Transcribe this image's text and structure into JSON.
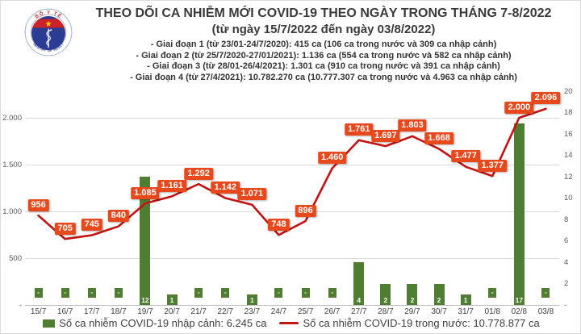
{
  "header": {
    "logo": {
      "top_text": "BỘ Y TẾ",
      "bottom_text": "MINISTRY OF HEALTH"
    },
    "title": "THEO DÕI CA NHIỄM MỚI COVID-19 THEO NGÀY TRONG THÁNG 7-8/2022",
    "subtitle": "(từ ngày 15/7/2022 đến ngày 03/8/2022)",
    "stages": [
      "- Giai đoạn 1 (từ 23/01-24/7/2020): 415 ca (106 ca trong nước và 309 ca nhập cảnh)",
      "- Giai đoạn 2 (từ 25/7/2020-27/01/2021): 1.136 ca (554 ca trong nước và 582 ca nhập cảnh)",
      "- Giai đoạn 3 (từ 28/01-26/4/2021): 1.301 ca (910 ca trong nước và 391 ca nhập cảnh)",
      "- Giai đoạn 4 (từ 27/4/2021): 10.782.270 ca (10.777.307 ca trong nước và 4.963 ca nhập cảnh)"
    ]
  },
  "chart_data": {
    "type": "bar",
    "subtype": "combo-bar-line",
    "categories": [
      "15/7",
      "16/7",
      "17/7",
      "18/7",
      "19/7",
      "20/7",
      "21/7",
      "22/7",
      "23/7",
      "24/7",
      "25/7",
      "26/7",
      "27/7",
      "28/7",
      "29/7",
      "30/7",
      "31/7",
      "01/8",
      "02/8",
      "03/8"
    ],
    "series": [
      {
        "name": "Số ca nhiễm COVID-19 nhập cảnh",
        "chart": "bar",
        "axis": "right",
        "color": "#4f7e33",
        "values": [
          0,
          0,
          0,
          0,
          12,
          1,
          0,
          0,
          1,
          0,
          0,
          0,
          4,
          2,
          2,
          2,
          1,
          0,
          17,
          0
        ],
        "labels": [
          "-",
          "-",
          "-",
          "-",
          "12",
          "1",
          "-",
          "-",
          "1",
          "-",
          "-",
          "-",
          "4",
          "2",
          "2",
          "2",
          "1",
          "-",
          "17",
          "-"
        ]
      },
      {
        "name": "Số ca nhiễm COVID-19 trong nước",
        "chart": "line",
        "axis": "left",
        "color": "#c41212",
        "label_bg": "#e8491c",
        "values": [
          956,
          705,
          745,
          840,
          1085,
          1161,
          1292,
          1142,
          1071,
          748,
          896,
          1460,
          1761,
          1697,
          1803,
          1668,
          1477,
          1377,
          2000,
          2096
        ],
        "labels": [
          "956",
          "705",
          "745",
          "840",
          "1.085",
          "1.161",
          "1.292",
          "1.142",
          "1.071",
          "748",
          "896",
          "1.460",
          "1.761",
          "1.697",
          "1.803",
          "1.668",
          "1.477",
          "1.377",
          "2.000",
          "2.096"
        ]
      }
    ],
    "left_axis": {
      "min": 0,
      "max": 2000,
      "tick_values": [
        0,
        500,
        1000,
        1500,
        2000
      ],
      "tick_labels": [
        "-",
        "500",
        "1.000",
        "1.500",
        "2.000"
      ]
    },
    "right_axis": {
      "min": 0,
      "max": 20,
      "tick_values": [
        0,
        2,
        4,
        6,
        8,
        10,
        12,
        14,
        16,
        18,
        20
      ],
      "tick_labels": [
        "-",
        "2",
        "4",
        "6",
        "8",
        "10",
        "12",
        "14",
        "16",
        "18",
        "20"
      ]
    },
    "grid": "horizontal",
    "legend_position": "bottom"
  },
  "legend": {
    "bar_label": "Số ca nhiễm COVID-19 nhập cảnh: 6.245 ca",
    "line_label": "Số ca nhiễm COVID-19 trong nước: 10.778.877 ca"
  },
  "colors": {
    "bar": "#4f7e33",
    "line": "#c41212",
    "line_label_bg": "#e8491c",
    "grid": "#d9d9d9",
    "axis_text": "#595959",
    "title_text": "#3a3a3a"
  }
}
